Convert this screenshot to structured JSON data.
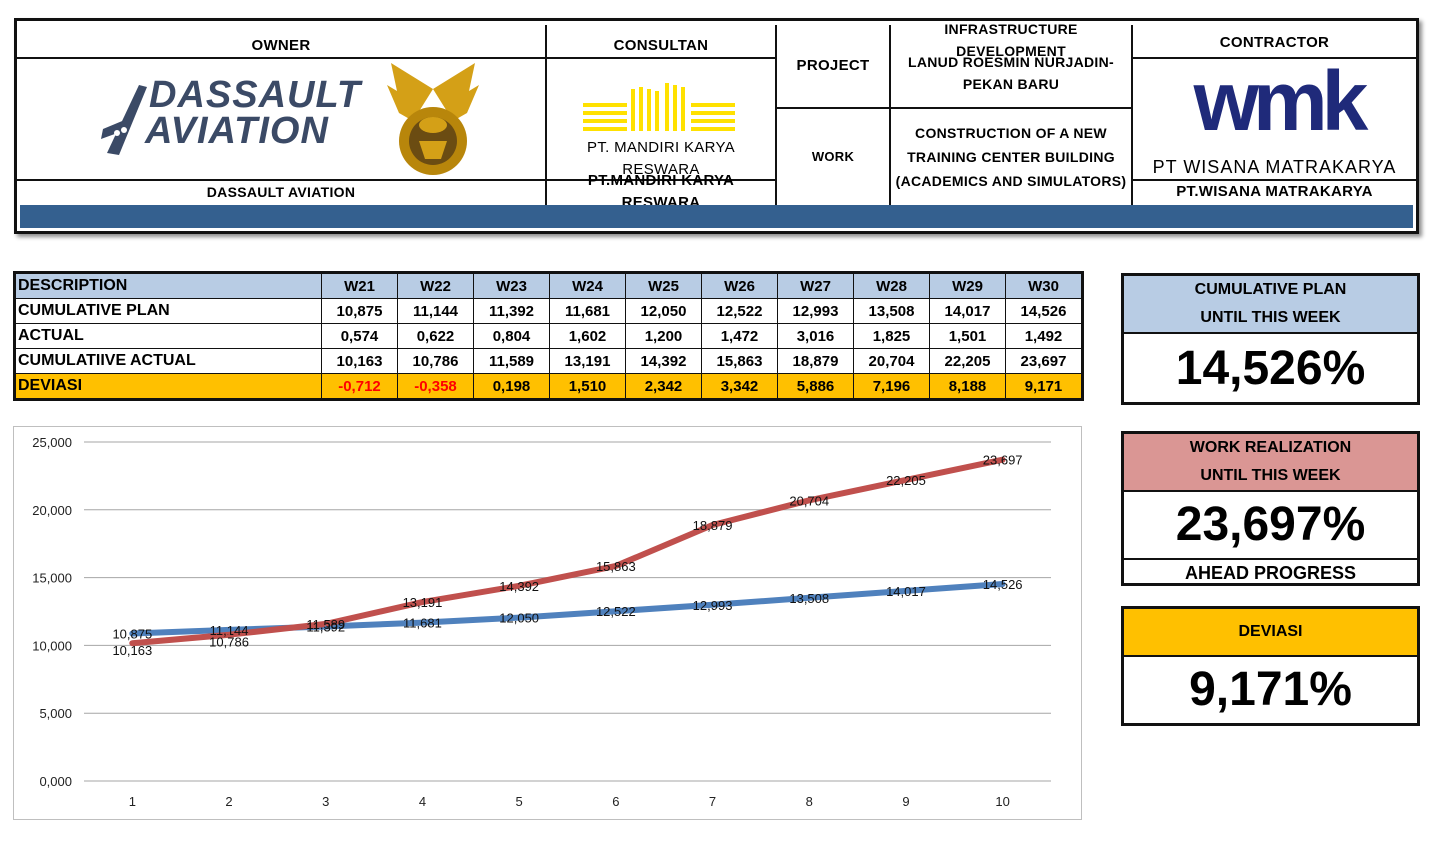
{
  "header": {
    "owner_label": "OWNER",
    "owner_logo_line1": "DASSAULT",
    "owner_logo_line2": "AVIATION",
    "owner_name": "DASSAULT AVIATION",
    "consultant_label": "CONSULTAN",
    "consultant_logo_text": "PT. MANDIRI KARYA RESWARA",
    "consultant_name": "PT.MANDIRI KARYA RESWARA",
    "project_label": "PROJECT",
    "project_value_line1": "INFRASTRUCTURE DEVELOPMENT",
    "project_value_line2": "LANUD ROESMIN NURJADIN-",
    "project_value_line3": "PEKAN BARU",
    "work_label": "WORK",
    "work_value_line1": "CONSTRUCTION OF A NEW",
    "work_value_line2": "TRAINING CENTER BUILDING",
    "work_value_line3": "(ACADEMICS AND SIMULATORS)",
    "contractor_label": "CONTRACTOR",
    "contractor_logo_mark": "wmk",
    "contractor_logo_text": "PT WISANA MATRAKARYA",
    "contractor_name": "PT.WISANA MATRAKARYA",
    "band_color": "#34608f"
  },
  "table": {
    "header_label": "DESCRIPTION",
    "weeks": [
      "W21",
      "W22",
      "W23",
      "W24",
      "W25",
      "W26",
      "W27",
      "W28",
      "W29",
      "W30"
    ],
    "rows": [
      {
        "label": "CUMULATIVE PLAN",
        "values": [
          "10,875",
          "11,144",
          "11,392",
          "11,681",
          "12,050",
          "12,522",
          "12,993",
          "13,508",
          "14,017",
          "14,526"
        ]
      },
      {
        "label": "ACTUAL",
        "values": [
          "0,574",
          "0,622",
          "0,804",
          "1,602",
          "1,200",
          "1,472",
          "3,016",
          "1,825",
          "1,501",
          "1,492"
        ]
      },
      {
        "label": "CUMULATIIVE ACTUAL",
        "values": [
          "10,163",
          "10,786",
          "11,589",
          "13,191",
          "14,392",
          "15,863",
          "18,879",
          "20,704",
          "22,205",
          "23,697"
        ]
      },
      {
        "label": "DEVIASI",
        "values": [
          "-0,712",
          "-0,358",
          "0,198",
          "1,510",
          "2,342",
          "3,342",
          "5,886",
          "7,196",
          "8,188",
          "9,171"
        ]
      }
    ]
  },
  "summary": {
    "plan_title_line1": "CUMULATIVE PLAN",
    "plan_title_line2": "UNTIL THIS WEEK",
    "plan_value": "14,526%",
    "real_title_line1": "WORK REALIZATION",
    "real_title_line2": "UNTIL THIS WEEK",
    "real_value": "23,697%",
    "real_status": "AHEAD PROGRESS",
    "dev_title": "DEVIASI",
    "dev_value": "9,171%"
  },
  "chart_data": {
    "type": "line",
    "title": "",
    "xlabel": "",
    "ylabel": "",
    "x": [
      1,
      2,
      3,
      4,
      5,
      6,
      7,
      8,
      9,
      10
    ],
    "ylim": [
      0,
      25
    ],
    "yticks": [
      0,
      5,
      10,
      15,
      20,
      25
    ],
    "ytick_labels": [
      "0,000",
      "5,000",
      "10,000",
      "15,000",
      "20,000",
      "25,000"
    ],
    "grid": true,
    "series": [
      {
        "color": "#4f81bd",
        "values": [
          10.875,
          11.144,
          11.392,
          11.681,
          12.05,
          12.522,
          12.993,
          13.508,
          14.017,
          14.526
        ],
        "labels": [
          "10,875",
          "11,144",
          "11,392",
          "11,681",
          "12,050",
          "12,522",
          "12,993",
          "13,508",
          "14,017",
          "14,526"
        ]
      },
      {
        "color": "#c0504d",
        "values": [
          10.163,
          10.786,
          11.589,
          13.191,
          14.392,
          15.863,
          18.879,
          20.704,
          22.205,
          23.697
        ],
        "labels": [
          "10,163",
          "10,786",
          "11,589",
          "13,191",
          "14,392",
          "15,863",
          "18,879",
          "20,704",
          "22,205",
          "23,697"
        ]
      }
    ]
  }
}
